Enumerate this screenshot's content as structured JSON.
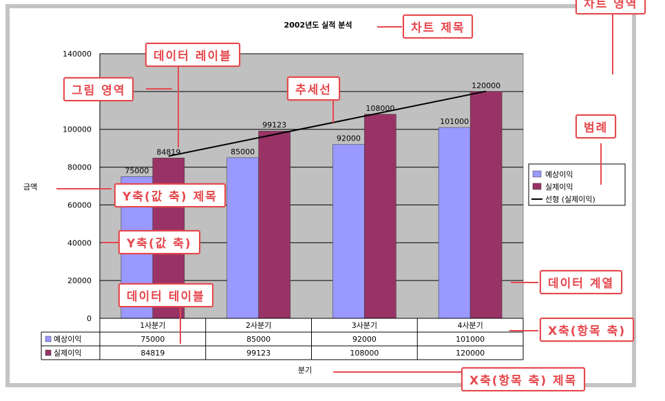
{
  "chart_data": {
    "type": "bar",
    "title": "2002년도 실적 분석",
    "ylabel": "금액",
    "xlabel": "분기",
    "categories": [
      "1사분기",
      "2사분기",
      "3사분기",
      "4사분기"
    ],
    "series": [
      {
        "name": "예상이익",
        "values": [
          75000,
          85000,
          92000,
          101000
        ],
        "color": "#9999ff"
      },
      {
        "name": "실제이익",
        "values": [
          84819,
          99123,
          108000,
          120000
        ],
        "color": "#993366"
      }
    ],
    "trendline": {
      "name": "선형 (실제이익)",
      "series": "실제이익",
      "color": "#000000"
    },
    "ylim": [
      0,
      140000
    ],
    "yticks": [
      0,
      20000,
      40000,
      60000,
      80000,
      100000,
      120000,
      140000
    ],
    "grid": true,
    "plot_background": "#c0c0c0",
    "legend": "right",
    "data_table": true
  },
  "callouts": {
    "chart_area": "차트 영역",
    "chart_title": "차트 제목",
    "data_label": "데이터 레이블",
    "plot_area": "그림 영역",
    "trendline": "추세선",
    "legend": "범례",
    "y_axis_title": "Y축(값 축) 제목",
    "y_axis": "Y축(값 축)",
    "data_series": "데이터 계열",
    "data_table": "데이터 테이블",
    "x_axis": "X축(항목 축)",
    "x_axis_title": "X축(항목 축) 제목"
  },
  "colors": {
    "callout": "#e5484d",
    "frame": "#c4c4c4"
  }
}
